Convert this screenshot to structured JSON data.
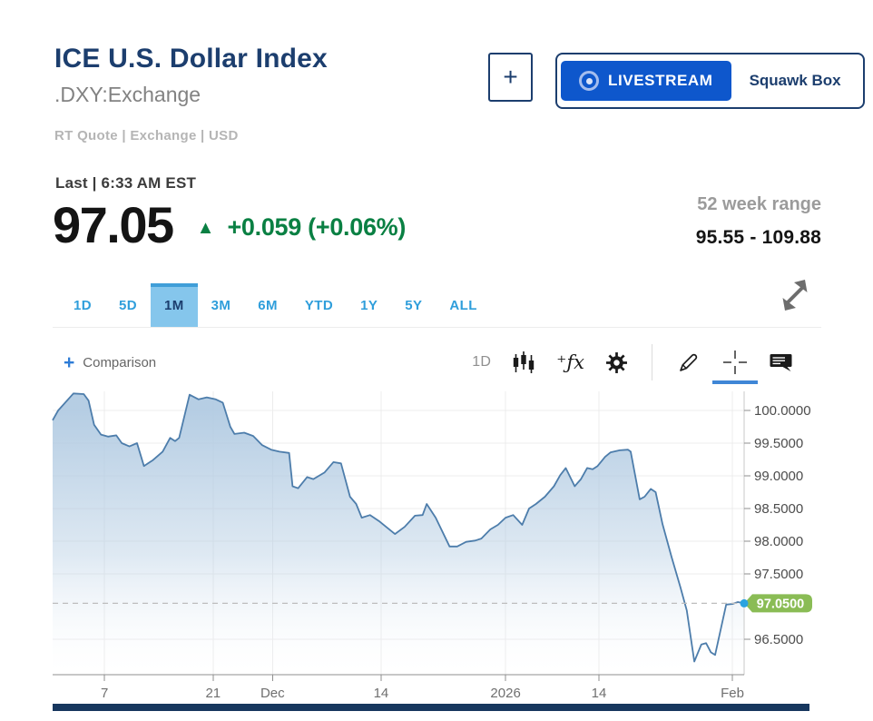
{
  "header": {
    "title": "ICE U.S. Dollar Index",
    "symbol": ".DXY:Exchange",
    "quote_meta": "RT Quote | Exchange | USD",
    "add_button_label": "+",
    "livestream": {
      "label": "LIVESTREAM",
      "show": "Squawk Box"
    }
  },
  "quote": {
    "last_label": "Last | 6:33 AM EST",
    "price": "97.05",
    "up_arrow": "▲",
    "change": "+0.059 (+0.06%)",
    "range_label": "52 week range",
    "range_value": "95.55 - 109.88",
    "up_color": "#0a8043"
  },
  "range_tabs": {
    "items": [
      "1D",
      "5D",
      "1M",
      "3M",
      "6M",
      "YTD",
      "1Y",
      "5Y",
      "ALL"
    ],
    "selected": "1M"
  },
  "toolbar": {
    "comparison_plus": "+",
    "comparison_label": "Comparison",
    "interval_label": "1D",
    "fx_glyph": "⁺ƒx",
    "icons": [
      "candlestick-icon",
      "function-icon",
      "settings-icon",
      "draw-icon",
      "crosshair-icon",
      "comment-icon"
    ],
    "active_tool": "crosshair"
  },
  "chart_data": {
    "type": "area",
    "symbol": ".DXY",
    "timeframe_selected": "1M",
    "grid": true,
    "legend": false,
    "ylim": [
      95.96,
      100.38
    ],
    "y_ticks": [
      {
        "label": "100.0000",
        "value": 100.0
      },
      {
        "label": "99.5000",
        "value": 99.5
      },
      {
        "label": "99.0000",
        "value": 99.0
      },
      {
        "label": "98.5000",
        "value": 98.5
      },
      {
        "label": "98.0000",
        "value": 98.0
      },
      {
        "label": "97.5000",
        "value": 97.5
      },
      {
        "label": "96.5000",
        "value": 96.5
      }
    ],
    "x_ticks": [
      {
        "label": "7",
        "pct": 7.5
      },
      {
        "label": "21",
        "pct": 23.2
      },
      {
        "label": "Dec",
        "pct": 31.8
      },
      {
        "label": "14",
        "pct": 47.5
      },
      {
        "label": "2026",
        "pct": 65.5
      },
      {
        "label": "14",
        "pct": 79.0
      },
      {
        "label": "Feb",
        "pct": 98.3
      }
    ],
    "last_price": {
      "label": "97.0500",
      "value": 97.05
    },
    "series": [
      {
        "name": ".DXY",
        "points": [
          [
            0,
            99.85
          ],
          [
            0.8,
            100.0
          ],
          [
            3,
            100.26
          ],
          [
            4.5,
            100.25
          ],
          [
            5.2,
            100.15
          ],
          [
            6,
            99.78
          ],
          [
            7,
            99.63
          ],
          [
            8,
            99.6
          ],
          [
            9.2,
            99.62
          ],
          [
            10,
            99.5
          ],
          [
            11.1,
            99.45
          ],
          [
            12.2,
            99.5
          ],
          [
            13.2,
            99.15
          ],
          [
            14.5,
            99.24
          ],
          [
            15.9,
            99.37
          ],
          [
            17,
            99.58
          ],
          [
            17.7,
            99.53
          ],
          [
            18.3,
            99.58
          ],
          [
            19.8,
            100.24
          ],
          [
            21.1,
            100.17
          ],
          [
            22.3,
            100.2
          ],
          [
            23.6,
            100.17
          ],
          [
            24.6,
            100.12
          ],
          [
            25.7,
            99.75
          ],
          [
            26.3,
            99.64
          ],
          [
            27.7,
            99.66
          ],
          [
            29,
            99.61
          ],
          [
            30.3,
            99.47
          ],
          [
            31.6,
            99.4
          ],
          [
            32.8,
            99.37
          ],
          [
            34.2,
            99.35
          ],
          [
            34.7,
            98.84
          ],
          [
            35.5,
            98.81
          ],
          [
            36.8,
            98.98
          ],
          [
            37.7,
            98.95
          ],
          [
            39.3,
            99.05
          ],
          [
            40.6,
            99.21
          ],
          [
            41.7,
            99.19
          ],
          [
            43,
            98.68
          ],
          [
            43.9,
            98.57
          ],
          [
            44.7,
            98.36
          ],
          [
            45.9,
            98.4
          ],
          [
            47.3,
            98.3
          ],
          [
            49.5,
            98.11
          ],
          [
            50.9,
            98.22
          ],
          [
            52.4,
            98.39
          ],
          [
            53.5,
            98.4
          ],
          [
            54.1,
            98.57
          ],
          [
            55.4,
            98.36
          ],
          [
            57.4,
            97.92
          ],
          [
            58.5,
            97.92
          ],
          [
            59.8,
            97.99
          ],
          [
            61.1,
            98.01
          ],
          [
            62,
            98.04
          ],
          [
            63.3,
            98.18
          ],
          [
            64.4,
            98.25
          ],
          [
            65.5,
            98.36
          ],
          [
            66.6,
            98.4
          ],
          [
            67.9,
            98.25
          ],
          [
            68.9,
            98.5
          ],
          [
            69.9,
            98.57
          ],
          [
            71.2,
            98.68
          ],
          [
            72.5,
            98.84
          ],
          [
            73.4,
            99.01
          ],
          [
            74.2,
            99.12
          ],
          [
            75.5,
            98.84
          ],
          [
            76.4,
            98.95
          ],
          [
            77.3,
            99.12
          ],
          [
            78.1,
            99.1
          ],
          [
            78.8,
            99.15
          ],
          [
            79.9,
            99.29
          ],
          [
            80.7,
            99.36
          ],
          [
            82,
            99.39
          ],
          [
            83.2,
            99.4
          ],
          [
            83.6,
            99.37
          ],
          [
            84.9,
            98.64
          ],
          [
            85.6,
            98.68
          ],
          [
            86.5,
            98.8
          ],
          [
            87.2,
            98.75
          ],
          [
            88.2,
            98.26
          ],
          [
            89.5,
            97.76
          ],
          [
            90.8,
            97.29
          ],
          [
            91.7,
            96.94
          ],
          [
            92.8,
            96.16
          ],
          [
            93.8,
            96.42
          ],
          [
            94.5,
            96.44
          ],
          [
            95.2,
            96.3
          ],
          [
            95.8,
            96.26
          ],
          [
            97.4,
            97.03
          ],
          [
            98.3,
            97.04
          ],
          [
            99.1,
            97.07
          ],
          [
            100,
            97.05
          ]
        ]
      }
    ],
    "colors": {
      "line": "#4d7dab",
      "fill_top": "#b2cbe2",
      "badge": "#8abc55",
      "dot": "#29a3e0",
      "grid": "#ececec",
      "dashed": "#bdbdbd"
    }
  }
}
